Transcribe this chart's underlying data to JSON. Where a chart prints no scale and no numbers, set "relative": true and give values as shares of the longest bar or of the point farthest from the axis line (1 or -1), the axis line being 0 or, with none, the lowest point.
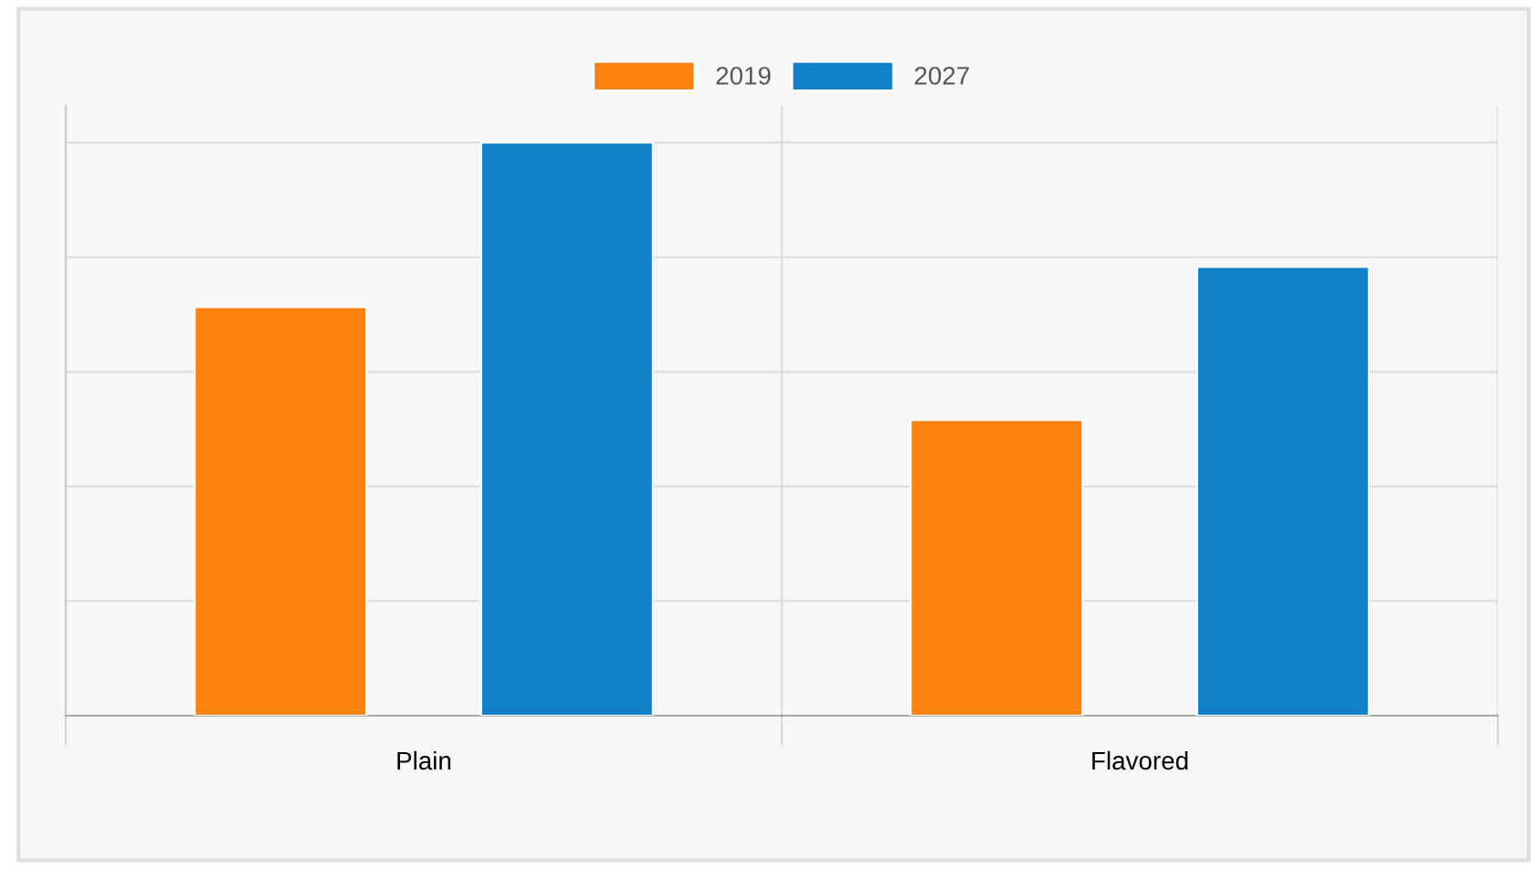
{
  "chart_data": {
    "type": "bar",
    "categories": [
      "Plain",
      "Flavored"
    ],
    "series": [
      {
        "name": "2019",
        "color": "#fd8210",
        "values": [
          0.713,
          0.516
        ]
      },
      {
        "name": "2027",
        "color": "#1180c9",
        "values": [
          1,
          0.783
        ]
      }
    ],
    "relative": true,
    "grid": true,
    "legend": "top"
  }
}
